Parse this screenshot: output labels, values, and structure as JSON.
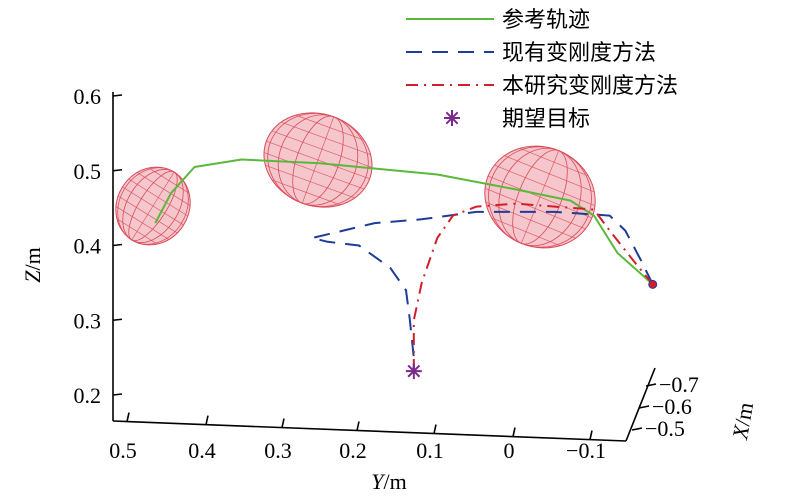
{
  "chart_data": {
    "type": "line",
    "projection": "3d",
    "grid": false,
    "legend_position": "top-right",
    "axes": {
      "x": {
        "label_italic": "X",
        "label_unit": "/m",
        "ticks": [
          "−0.5",
          "−0.6",
          "−0.7"
        ],
        "values": [
          -0.5,
          -0.6,
          -0.7
        ],
        "range": [
          -0.75,
          -0.45
        ]
      },
      "y": {
        "label_italic": "Y",
        "label_unit": "/m",
        "ticks": [
          "0.5",
          "0.4",
          "0.3",
          "0.2",
          "0.1",
          "0",
          "−0.1"
        ],
        "values": [
          0.5,
          0.4,
          0.3,
          0.2,
          0.1,
          0.0,
          -0.1
        ],
        "range": [
          0.52,
          -0.15
        ]
      },
      "z": {
        "label_italic": "Z",
        "label_unit": "/m",
        "ticks": [
          "0.2",
          "0.3",
          "0.4",
          "0.5",
          "0.6"
        ],
        "values": [
          0.2,
          0.3,
          0.4,
          0.5,
          0.6
        ],
        "range": [
          0.17,
          0.62
        ]
      }
    },
    "series": [
      {
        "name": "参考轨迹",
        "color": "#5ab83a",
        "style": "solid",
        "points_yz": [
          [
            0.46,
            0.43
          ],
          [
            0.44,
            0.47
          ],
          [
            0.41,
            0.505
          ],
          [
            0.35,
            0.515
          ],
          [
            0.25,
            0.51
          ],
          [
            0.1,
            0.495
          ],
          [
            0.0,
            0.475
          ],
          [
            -0.07,
            0.46
          ],
          [
            -0.1,
            0.44
          ],
          [
            -0.13,
            0.39
          ],
          [
            -0.175,
            0.348
          ]
        ]
      },
      {
        "name": "现有变刚度方法",
        "color": "#1f3c99",
        "style": "dashed",
        "points_yz": [
          [
            -0.175,
            0.348
          ],
          [
            -0.16,
            0.38
          ],
          [
            -0.14,
            0.42
          ],
          [
            -0.12,
            0.44
          ],
          [
            -0.05,
            0.445
          ],
          [
            0.05,
            0.445
          ],
          [
            0.12,
            0.435
          ],
          [
            0.18,
            0.43
          ],
          [
            0.24,
            0.415
          ],
          [
            0.26,
            0.41
          ],
          [
            0.24,
            0.405
          ],
          [
            0.2,
            0.4
          ],
          [
            0.16,
            0.37
          ],
          [
            0.14,
            0.34
          ],
          [
            0.135,
            0.3
          ],
          [
            0.13,
            0.25
          ],
          [
            0.13,
            0.232
          ]
        ]
      },
      {
        "name": "本研究变刚度方法",
        "color": "#d11f2a",
        "style": "dashdot",
        "points_yz": [
          [
            -0.175,
            0.348
          ],
          [
            -0.15,
            0.38
          ],
          [
            -0.12,
            0.42
          ],
          [
            -0.1,
            0.448
          ],
          [
            -0.05,
            0.452
          ],
          [
            0.0,
            0.456
          ],
          [
            0.05,
            0.452
          ],
          [
            0.08,
            0.44
          ],
          [
            0.1,
            0.41
          ],
          [
            0.11,
            0.38
          ],
          [
            0.12,
            0.35
          ],
          [
            0.13,
            0.3
          ],
          [
            0.13,
            0.26
          ],
          [
            0.13,
            0.235
          ]
        ]
      }
    ],
    "markers": [
      {
        "name": "期望目标",
        "symbol": "*",
        "color": "#7a2a8c",
        "y": 0.13,
        "z": 0.232
      }
    ],
    "ellipsoids": [
      {
        "color": "#d94b5a",
        "fill": "#f2b3ba"
      },
      {
        "color": "#d94b5a",
        "fill": "#f2b3ba"
      },
      {
        "color": "#d94b5a",
        "fill": "#f2b3ba"
      }
    ]
  }
}
